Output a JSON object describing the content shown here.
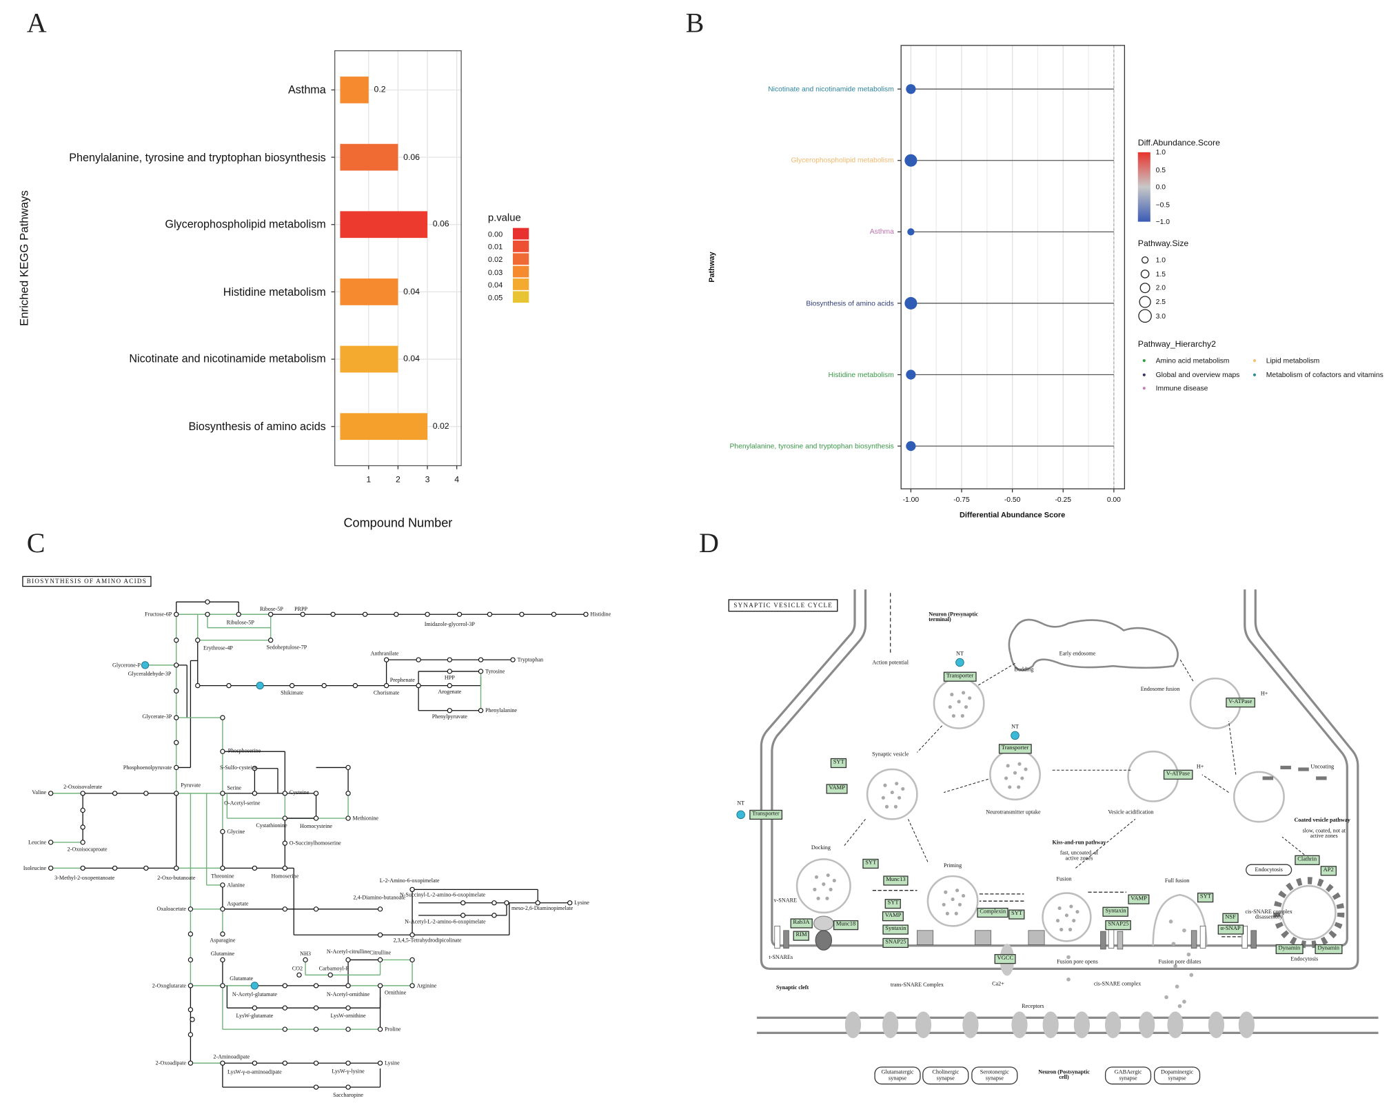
{
  "panels": {
    "a": "A",
    "b": "B",
    "c": "C",
    "d": "D"
  },
  "chart_data": [
    {
      "type": "bar",
      "orientation": "horizontal",
      "title": "",
      "xlabel": "Compound Number",
      "ylabel": "Enriched KEGG Pathways",
      "xlim": [
        0,
        4.2
      ],
      "xticks": [
        "1",
        "2",
        "3",
        "4"
      ],
      "grid": true,
      "categories": [
        "Asthma",
        "Phenylalanine, tyrosine and tryptophan biosynthesis",
        "Glycerophospholipid metabolism",
        "Histidine metabolism",
        "Nicotinate and nicotinamide metabolism",
        "Biosynthesis of amino acids"
      ],
      "values": [
        1,
        2,
        3,
        2,
        2,
        3
      ],
      "bar_labels": [
        "0.2",
        "0.06",
        "0.06",
        "0.04",
        "0.04",
        "0.02"
      ],
      "p_values": [
        0.03,
        0.02,
        0.0,
        0.03,
        0.04,
        0.035
      ],
      "bar_colors": [
        "#f58a2e",
        "#f06b33",
        "#ec3b2e",
        "#f58a2e",
        "#f4a92f",
        "#f5a02d"
      ],
      "legend": {
        "title": "p.value",
        "placement": "right",
        "entries": [
          "0.00",
          "0.01",
          "0.02",
          "0.03",
          "0.04",
          "0.05"
        ],
        "colors": [
          "#e8302e",
          "#ee5034",
          "#f06b33",
          "#f58a2e",
          "#f4a92f",
          "#e8c432"
        ]
      }
    },
    {
      "type": "scatter",
      "subtype": "lollipop",
      "xlabel": "Differential Abundance Score",
      "ylabel": "Pathway",
      "xlim": [
        -1.05,
        0.05
      ],
      "xticks": [
        "-1.00",
        "-0.75",
        "-0.50",
        "-0.25",
        "0.00"
      ],
      "xtick_values": [
        -1,
        -0.75,
        -0.5,
        -0.25,
        0
      ],
      "grid": true,
      "categories": [
        "Nicotinate and nicotinamide metabolism",
        "Glycerophospholipid metabolism",
        "Asthma",
        "Biosynthesis of amino acids",
        "Histidine metabolism",
        "Phenylalanine, tyrosine and tryptophan biosynthesis"
      ],
      "x": [
        -1,
        -1,
        -1,
        -1,
        -1,
        -1
      ],
      "pathway_size": [
        2,
        3,
        1,
        3,
        2,
        2
      ],
      "hierarchy": [
        "Metabolism of cofactors and vitamins",
        "Lipid metabolism",
        "Immune disease",
        "Global and overview maps",
        "Amino acid metabolism",
        "Amino acid metabolism"
      ],
      "label_colors": [
        "#2b86a0",
        "#f3b86c",
        "#c06fb0",
        "#2f3a78",
        "#3a9a48",
        "#3a9a48"
      ],
      "point_color": "#2f5db5",
      "legend": {
        "color_title": "Diff.Abundance.Score",
        "color_ticks": [
          "1.0",
          "0.5",
          "0.0",
          "−0.5",
          "−1.0"
        ],
        "color_range": [
          "#e8332c",
          "#c8c8c8",
          "#3a5bb5"
        ],
        "size_title": "Pathway.Size",
        "size_entries": [
          "1.0",
          "1.5",
          "2.0",
          "2.5",
          "3.0"
        ],
        "hierarchy_title": "Pathway_Hierarchy2",
        "hierarchy_entries": [
          "Amino acid metabolism",
          "Lipid metabolism",
          "Global and overview maps",
          "Metabolism of cofactors and vitamins",
          "Immune disease"
        ],
        "hierarchy_colors": [
          "#3a9a48",
          "#f3c078",
          "#333366",
          "#2b8a9a",
          "#c080b0"
        ],
        "placement": "right"
      }
    }
  ],
  "pathway_c": {
    "title": "BIOSYNTHESIS OF AMINO ACIDS",
    "labels": {
      "fructose6p": "Fructose-6P",
      "ribose5p": "Ribose-5P",
      "prpp": "PRPP",
      "ribulose5p": "Ribulose-5P",
      "histidine": "Histidine",
      "imidazole": "Imidazole-glycerol-3P",
      "erythrose4p": "Erythrose-4P",
      "sedoheptulose7p": "Sedoheptulose-7P",
      "glyceroneP": "Glycerone-P",
      "glyceraldehyde3p": "Glyceraldehyde-3P",
      "shikimate": "Shikimate",
      "chorismate": "Chorismate",
      "anthranilate": "Anthranilate",
      "tryptophan": "Tryptophan",
      "prephenate": "Prephenate",
      "hpp": "HPP",
      "tyrosine": "Tyrosine",
      "arogenate": "Arogenate",
      "phenylpyruvate": "Phenylpyruvate",
      "phenylalanine": "Phenylalanine",
      "glycerate3p": "Glycerate-3P",
      "phosphoserine": "Phosphoserine",
      "pep": "Phosphoenolpyruvate",
      "sulfocysteine": "S-Sulfo-cysteine",
      "pyruvate": "Pyruvate",
      "serine": "Serine",
      "oacetylserine": "O-Acetyl-serine",
      "cysteine": "Cysteine",
      "methionine": "Methionine",
      "oxoisovalerate": "2-Oxoisovalerate",
      "valine": "Valine",
      "leucine": "Leucine",
      "oxoisocaproate": "2-Oxoisocaproate",
      "cystathionine": "Cystathionine",
      "homocysteine": "Homocysteine",
      "glycine": "Glycine",
      "osuccinylhomoserine": "O-Succinylhomoserine",
      "isoleucine": "Isoleucine",
      "methyloxopentanoate": "3-Methyl-2-oxopentanoate",
      "oxobutanoate": "2-Oxo-butanoate",
      "threonine": "Threonine",
      "homoserine": "Homoserine",
      "alanine": "Alanine",
      "oxaloacetate": "Oxaloacetate",
      "aspartate": "Aspartate",
      "asparagine": "Asparagine",
      "diaminobutanoate": "2,4-Diamino-butanoate",
      "aminooxopimelate": "L-2-Amino-6-oxopimelate",
      "nsuccinyl": "N-Succinyl-L-2-amino-6-oxopimelate",
      "nacetylamino": "N-Acetyl-L-2-amino-6-oxopimelate",
      "tetrahydrodipicolinate": "2,3,4,5-Tetrahydrodipicolinate",
      "diaminopimelate": "meso-2,6-Diaminopimelate",
      "lysine1": "Lysine",
      "glutamine": "Glutamine",
      "nh3": "NH3",
      "co2": "CO2",
      "carbamoylp": "Carbamoyl-P",
      "nacetylcitrulline": "N-Acetyl-citrulline",
      "citrulline": "Citrulline",
      "arginine": "Arginine",
      "oxoglutarate": "2-Oxoglutarate",
      "glutamate": "Glutamate",
      "nacetylglutamate": "N-Acetyl-glutamate",
      "nacetylornithine": "N-Acetyl-ornithine",
      "ornithine": "Ornithine",
      "lyswglutamate": "LysW-glutamate",
      "lyswornithine": "LysW-ornithine",
      "proline": "Proline",
      "oxoadipate": "2-Oxoadipate",
      "aminoadipate": "2-Aminoadipate",
      "lyswaminoadipate": "LysW-γ-α-aminoadipate",
      "lyswlysine": "LysW-γ-lysine",
      "lysine2": "Lysine",
      "saccharopine": "Saccharopine"
    }
  },
  "pathway_d": {
    "title": "SYNAPTIC VESICLE CYCLE",
    "labels": {
      "presynaptic": "Neuron (Presynaptic terminal)",
      "action_potential": "Action potential",
      "early_endosome": "Early endosome",
      "budding": "Budding",
      "endosome_fusion": "Endosome fusion",
      "nt1": "NT",
      "nt2": "NT",
      "nt3": "NT",
      "hplus1": "H+",
      "hplus2": "H+",
      "synaptic_vesicle": "Synaptic vesicle",
      "nt_uptake": "Neurotransmitter uptake",
      "vesicle_acidification": "Vesicle acidification",
      "uncoating": "Uncoating",
      "coated_pathway": "Coated vesicle pathway",
      "coated_desc": "slow, coated, not at active zones",
      "kiss_run": "Kiss-and-run pathway",
      "kiss_desc": "fast, uncoated, at active zones",
      "docking": "Docking",
      "priming": "Priming",
      "fusion": "Fusion",
      "full_fusion": "Full fusion",
      "v_snare": "v-SNARE",
      "t_snares": "t-SNAREs",
      "ca": "Ca2+",
      "pore_opens": "Fusion pore opens",
      "pore_dilates": "Fusion pore dilates",
      "cis_snare": "cis-SNARE complex",
      "cis_disassembly": "cis-SNARE complex disassembly",
      "trans_snare": "trans-SNARE Complex",
      "synaptic_cleft": "Synaptic cleft",
      "receptors": "Receptors",
      "endocytosis2": "Endocytosis",
      "postsynaptic": "Neuron (Postsynaptic cell)"
    },
    "genes": {
      "transporter1": "Transporter",
      "transporter2": "Transporter",
      "transporter3": "Transporter",
      "vatpase1": "V-ATPase",
      "vatpase2": "V-ATPase",
      "syt1": "SYT",
      "vamp1": "VAMP",
      "syt2": "SYT",
      "munc13": "Munc13",
      "syt3": "SYT",
      "vamp2": "VAMP",
      "syntaxin1": "Syntaxin",
      "snap25_1": "SNAP25",
      "rab3a": "Rab3A",
      "rim": "RIM",
      "munc18": "Munc18",
      "complexin": "Complexin",
      "syt4": "SYT",
      "vgcc": "VGCC",
      "syntaxin2": "Syntaxin",
      "vamp3": "VAMP",
      "snap25_2": "SNAP25",
      "syt5": "SYT",
      "nsf": "NSF",
      "asnap": "α-SNAP",
      "clathrin": "Clathrin",
      "ap2": "AP2",
      "dynamin1": "Dynamin",
      "dynamin2": "Dynamin"
    },
    "links": {
      "endocytosis": "Endocytosis",
      "glutamatergic": "Glutamatergic synapse",
      "cholinergic": "Cholinergic synapse",
      "serotonergic": "Serotonergic synapse",
      "gabaergic": "GABAergic synapse",
      "dopaminergic": "Dopaminergic synapse"
    }
  }
}
